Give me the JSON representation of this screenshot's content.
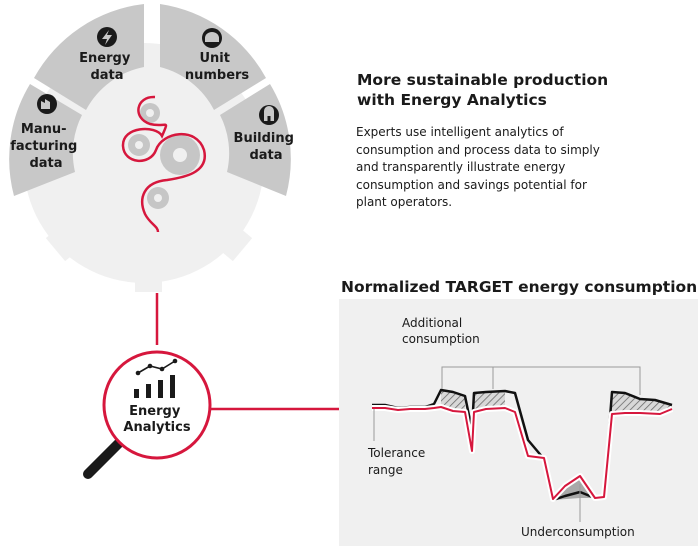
{
  "hub": {
    "segments": [
      {
        "label_lines": [
          "Manu-",
          "facturing",
          "data"
        ],
        "icon": "factory-icon"
      },
      {
        "label_lines": [
          "Energy",
          "data"
        ],
        "icon": "lightning-bolt-icon"
      },
      {
        "label_lines": [
          "Unit",
          "numbers"
        ],
        "icon": "hard-hat-icon"
      },
      {
        "label_lines": [
          "Building",
          "data"
        ],
        "icon": "building-icon"
      }
    ]
  },
  "lens": {
    "label_lines": [
      "Energy",
      "Analytics"
    ],
    "icon": "bar-chart-trend-icon"
  },
  "text": {
    "headline_lines": [
      "More sustainable production",
      "with Energy Analytics"
    ],
    "description_lines": [
      "Experts use intelligent analytics of",
      "consumption and process data to simply",
      "and transparently illustrate energy",
      "consumption and savings potential for",
      "plant operators."
    ]
  },
  "chart": {
    "title": "Normalized TARGET energy consumption",
    "annotations": {
      "additional_lines": [
        "Additional",
        "consumption"
      ],
      "tolerance_lines": [
        "Tolerance",
        "range"
      ],
      "under": "Underconsumption"
    }
  },
  "colors": {
    "accent_red": "#d6173d",
    "gear_gray": "#c8c8c8",
    "light_gray": "#f0f0f0",
    "hatch_gray": "#a9a9a9",
    "text_dark": "#1a1a1a"
  }
}
